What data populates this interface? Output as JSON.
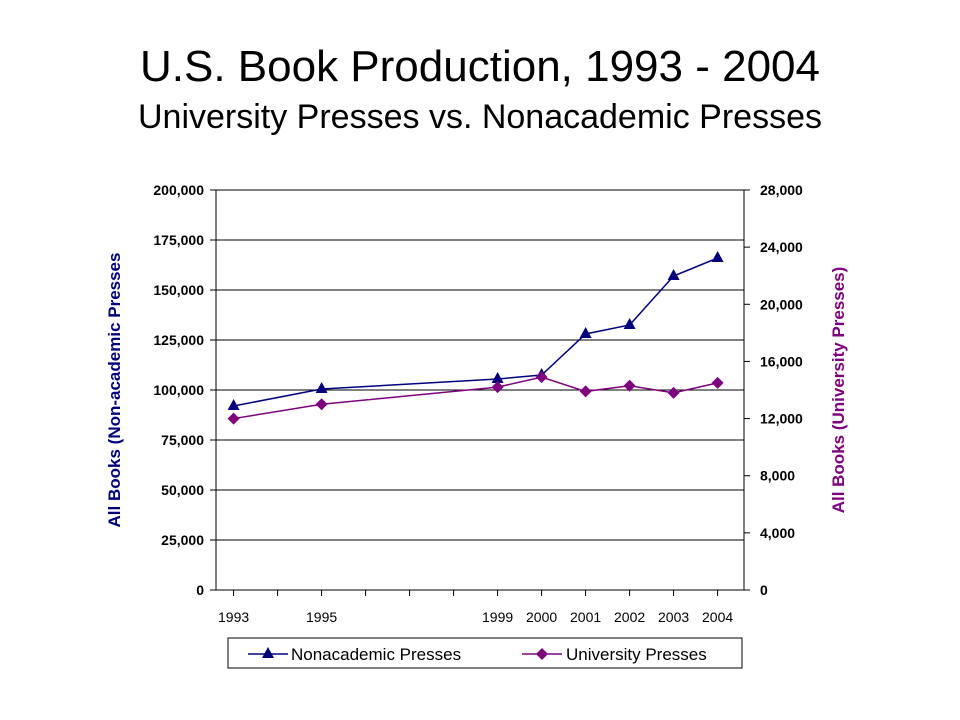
{
  "chart_data": {
    "type": "line",
    "title": "U.S. Book Production, 1993 - 2004",
    "subtitle": "University Presses vs. Nonacademic Presses",
    "x": [
      1993,
      1995,
      1999,
      2000,
      2001,
      2002,
      2003,
      2004
    ],
    "x_tick_labels": [
      "1993",
      "1995",
      "1999",
      "2000",
      "2001",
      "2002",
      "2003",
      "2004"
    ],
    "xlim": [
      1992.6,
      2004.6
    ],
    "ylabel_left": "All Books (Non-academic Presses",
    "ylabel_right": "All Books (University Presses)",
    "ylim_left": [
      0,
      200000
    ],
    "ylim_right": [
      0,
      28000
    ],
    "y_ticks_left": [
      "0",
      "25,000",
      "50,000",
      "75,000",
      "100,000",
      "125,000",
      "150,000",
      "175,000",
      "200,000"
    ],
    "y_ticks_right": [
      "0",
      "4,000",
      "8,000",
      "12,000",
      "16,000",
      "20,000",
      "24,000",
      "28,000"
    ],
    "grid": true,
    "legend_position": "bottom",
    "series": [
      {
        "name": "Nonacademic Presses",
        "axis": "left",
        "marker": "triangle",
        "color": "#000080",
        "values": [
          92000,
          100500,
          105500,
          107500,
          128000,
          132500,
          157000,
          166000
        ]
      },
      {
        "name": "University Presses",
        "axis": "right",
        "marker": "diamond",
        "color": "#800080",
        "values": [
          12000,
          13000,
          14200,
          14900,
          13900,
          14300,
          13800,
          14500
        ]
      }
    ]
  }
}
